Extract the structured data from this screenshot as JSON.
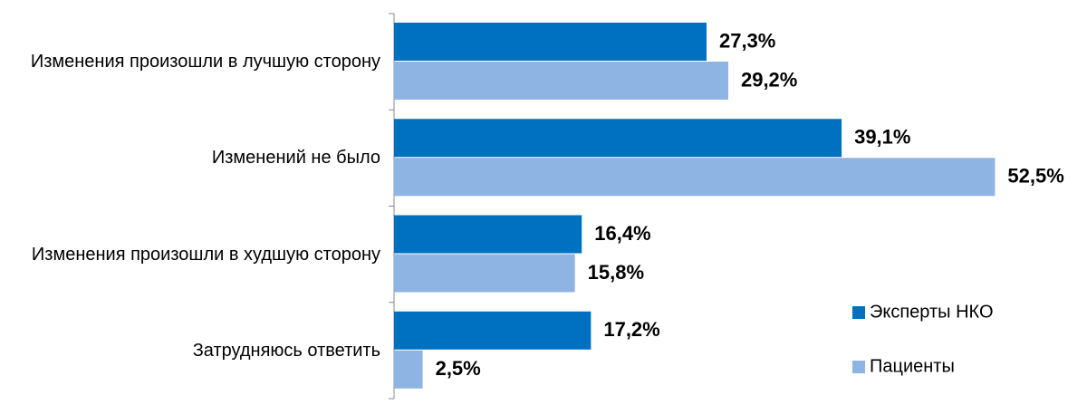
{
  "chart_data": {
    "type": "bar",
    "orientation": "horizontal",
    "categories": [
      "Изменения произошли в лучшую сторону",
      "Изменений не было",
      "Изменения произошли в худшую сторону",
      "Затрудняюсь ответить"
    ],
    "series": [
      {
        "name": "Эксперты НКО",
        "color": "#0070c0",
        "values": [
          27.3,
          39.1,
          16.4,
          17.2
        ],
        "value_labels": [
          "27,3%",
          "39,1%",
          "16,4%",
          "17,2%"
        ]
      },
      {
        "name": "Пациенты",
        "color": "#8eb4e3",
        "values": [
          29.2,
          52.5,
          15.8,
          2.5
        ],
        "value_labels": [
          "29,2%",
          "52,5%",
          "15,8%",
          "2,5%"
        ]
      }
    ],
    "xlim": [
      0,
      55
    ],
    "legend": "lower right"
  }
}
